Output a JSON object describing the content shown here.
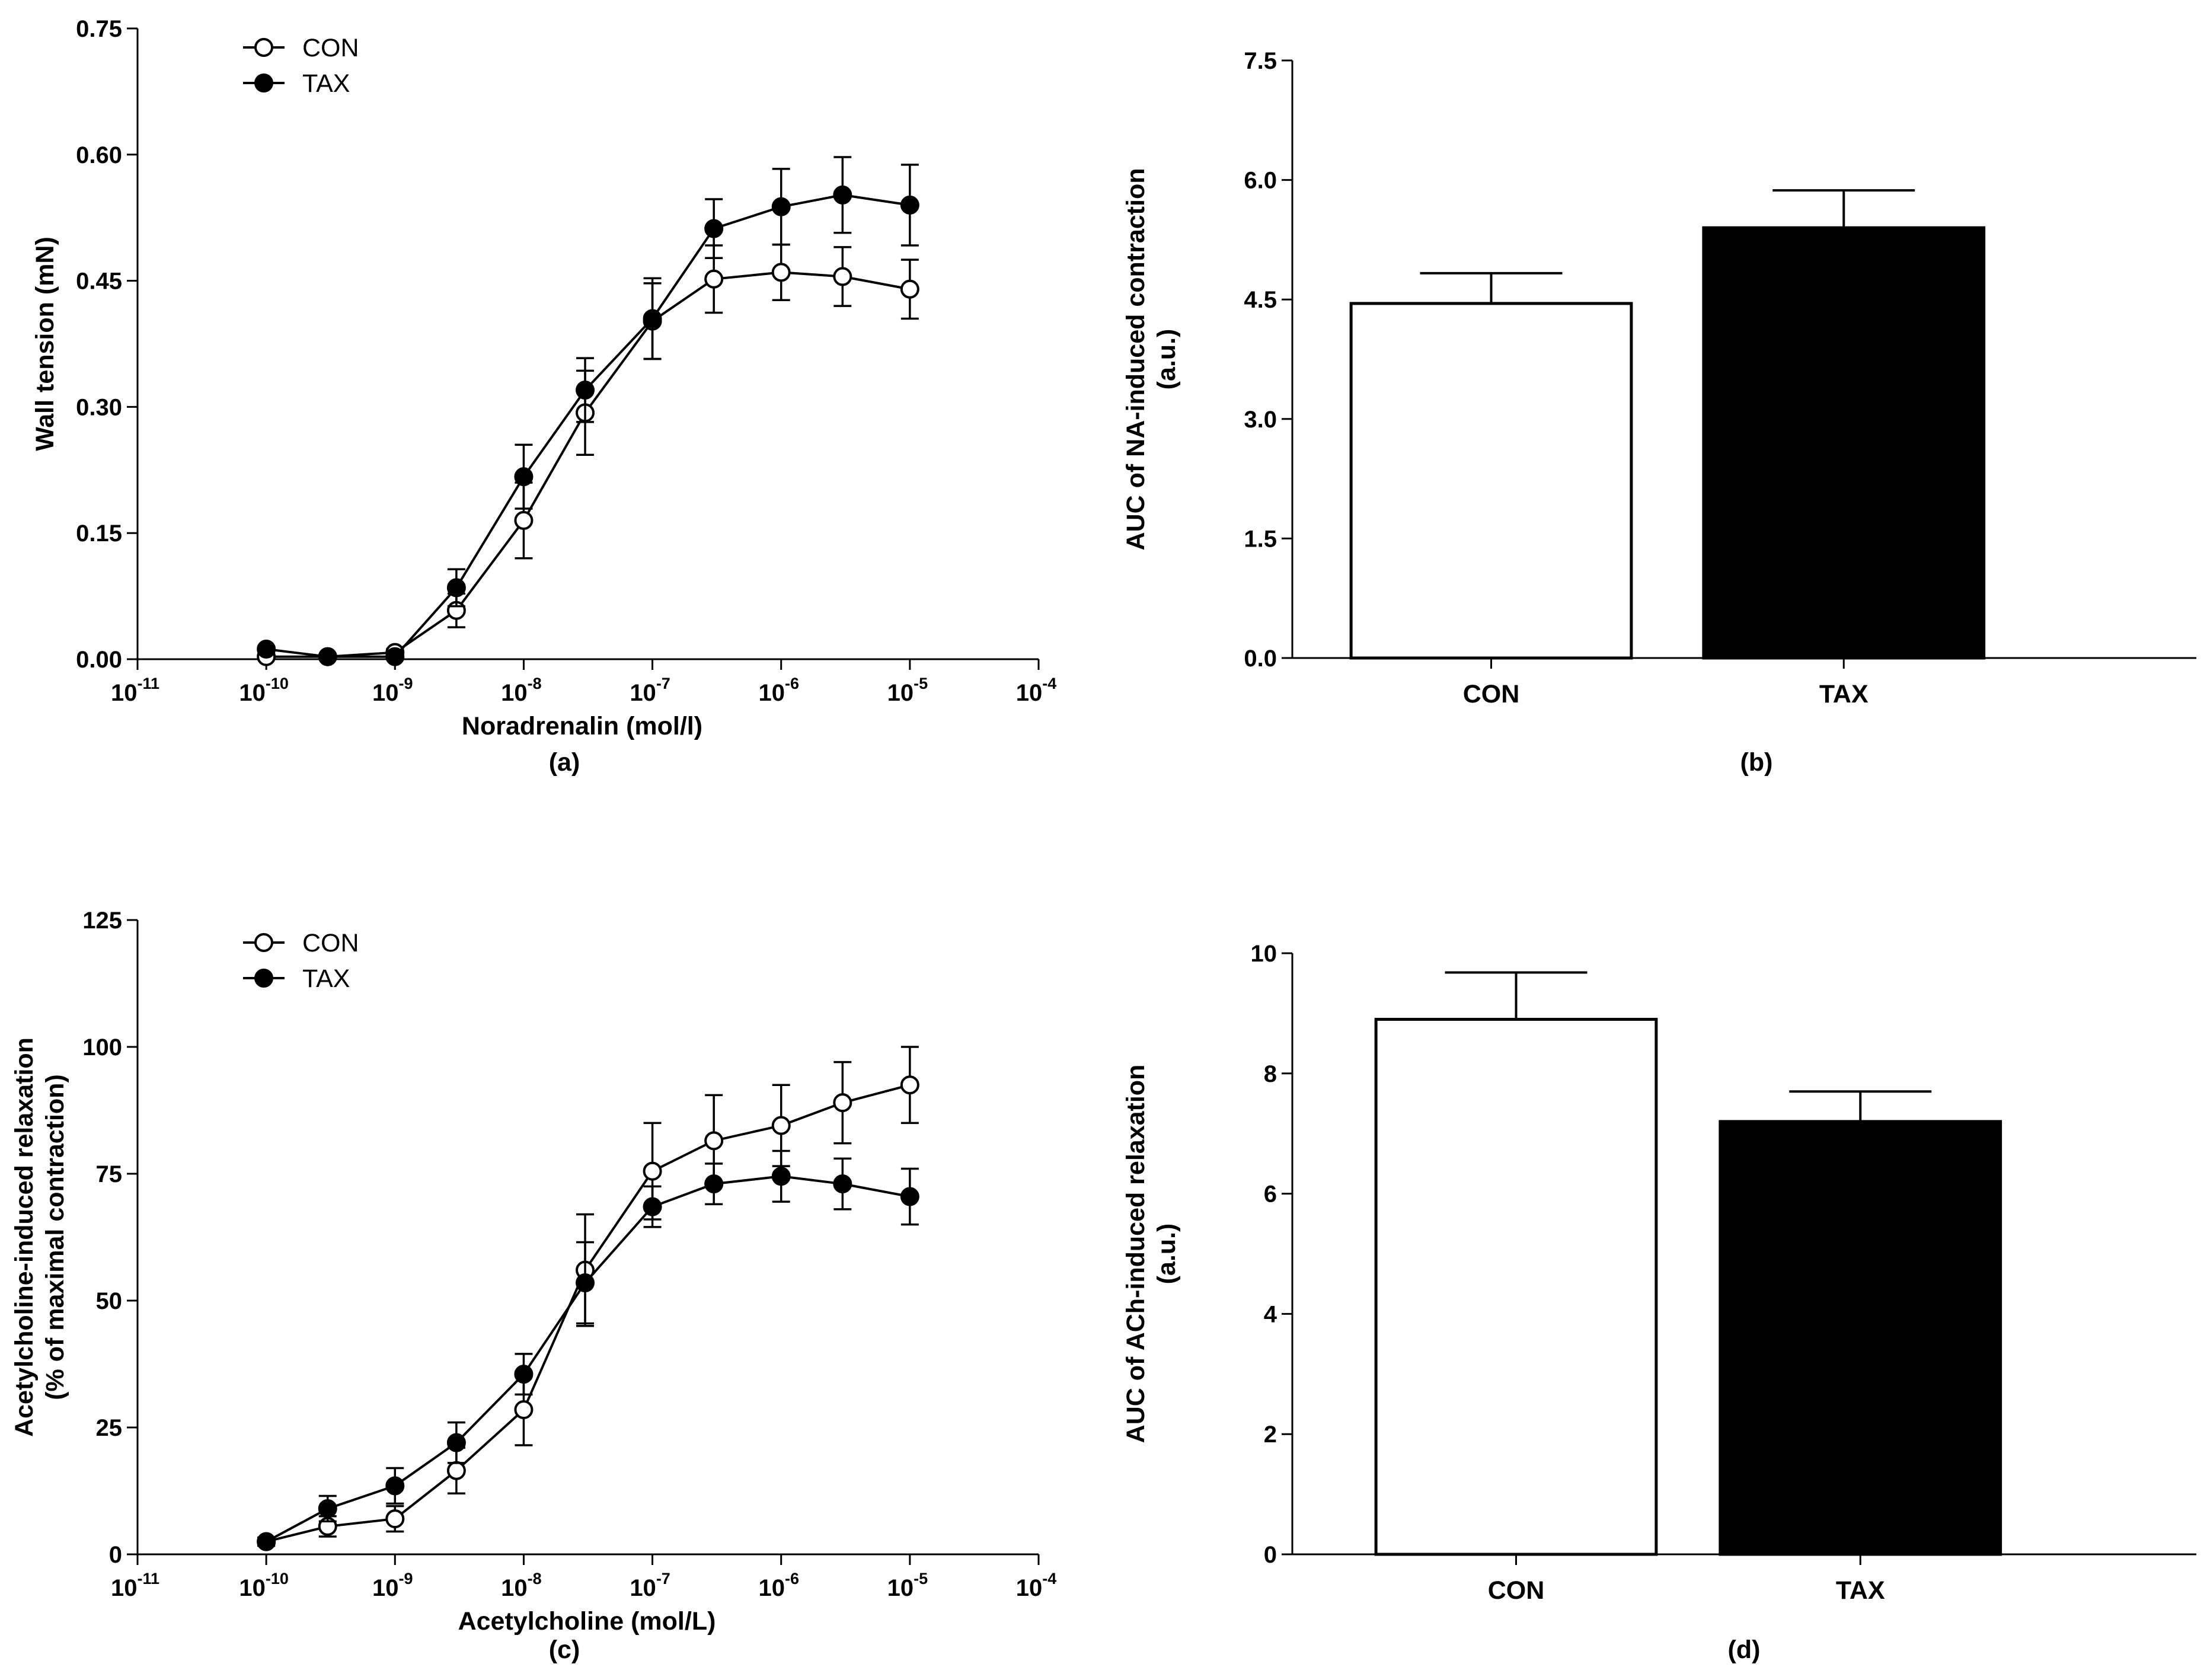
{
  "chart_data": [
    {
      "panel": "(a)",
      "type": "line",
      "xscale": "log",
      "xlim": [
        1e-11,
        0.0001
      ],
      "x_ticks": [
        1e-11,
        1e-10,
        1e-09,
        1e-08,
        1e-07,
        1e-06,
        1e-05,
        0.0001
      ],
      "x_exponents": [
        "-11",
        "-10",
        "-9",
        "-8",
        "-7",
        "-6",
        "-5",
        "-4"
      ],
      "xlabel": "Noradrenalin (mol/l)",
      "ylabel": [
        "Wall tension (mN)"
      ],
      "ylim": [
        0,
        0.75
      ],
      "y_ticks": [
        "0.00",
        "0.15",
        "0.30",
        "0.45",
        "0.60",
        "0.75"
      ],
      "x": [
        1e-10,
        3e-10,
        1e-09,
        3e-09,
        1e-08,
        3e-08,
        1e-07,
        3e-07,
        1e-06,
        3e-06,
        1e-05
      ],
      "legend_position": "top-left",
      "series": [
        {
          "name": "CON",
          "marker": "open-circle",
          "values": [
            0.003,
            0.003,
            0.008,
            0.058,
            0.165,
            0.293,
            0.402,
            0.452,
            0.46,
            0.455,
            0.44
          ],
          "errors": [
            0.003,
            0.003,
            0.004,
            0.02,
            0.045,
            0.05,
            0.045,
            0.04,
            0.033,
            0.035,
            0.035
          ]
        },
        {
          "name": "TAX",
          "marker": "filled-circle",
          "values": [
            0.012,
            0.003,
            0.003,
            0.085,
            0.217,
            0.32,
            0.405,
            0.512,
            0.538,
            0.552,
            0.54
          ],
          "errors": [
            0.003,
            0.002,
            0.003,
            0.022,
            0.038,
            0.038,
            0.048,
            0.035,
            0.045,
            0.045,
            0.048
          ]
        }
      ]
    },
    {
      "panel": "(b)",
      "type": "bar",
      "categories": [
        "CON",
        "TAX"
      ],
      "values": [
        4.45,
        5.4
      ],
      "errors": [
        0.38,
        0.47
      ],
      "colors": [
        "#ffffff",
        "#000000"
      ],
      "xlabel": "",
      "ylabel": [
        "AUC of NA-induced contraction",
        "(a.u.)"
      ],
      "ylim": [
        0,
        7.5
      ],
      "y_ticks": [
        "0.0",
        "1.5",
        "3.0",
        "4.5",
        "6.0",
        "7.5"
      ]
    },
    {
      "panel": "(c)",
      "type": "line",
      "xscale": "log",
      "xlim": [
        1e-11,
        0.0001
      ],
      "x_ticks": [
        1e-11,
        1e-10,
        1e-09,
        1e-08,
        1e-07,
        1e-06,
        1e-05,
        0.0001
      ],
      "x_exponents": [
        "-11",
        "-10",
        "-9",
        "-8",
        "-7",
        "-6",
        "-5",
        "-4"
      ],
      "xlabel": "Acetylcholine (mol/L)",
      "ylabel": [
        "Acetylcholine-induced relaxation",
        "(% of maximal contraction)"
      ],
      "ylim": [
        0,
        125
      ],
      "y_ticks": [
        "0",
        "25",
        "50",
        "75",
        "100",
        "125"
      ],
      "x": [
        1e-10,
        3e-10,
        1e-09,
        3e-09,
        1e-08,
        3e-08,
        1e-07,
        3e-07,
        1e-06,
        3e-06,
        1e-05
      ],
      "legend_position": "top-left",
      "series": [
        {
          "name": "CON",
          "marker": "open-circle",
          "values": [
            2.5,
            5.5,
            7.0,
            16.5,
            28.5,
            56.0,
            75.5,
            81.5,
            84.5,
            89.0,
            92.5
          ],
          "errors": [
            0.8,
            2.0,
            2.5,
            4.5,
            7.0,
            11.0,
            9.5,
            9.0,
            8.0,
            8.0,
            7.5
          ]
        },
        {
          "name": "TAX",
          "marker": "filled-circle",
          "values": [
            2.5,
            9.0,
            13.5,
            22.0,
            35.5,
            53.5,
            68.5,
            73.0,
            74.5,
            73.0,
            70.5
          ],
          "errors": [
            0.8,
            2.5,
            3.5,
            4.0,
            4.0,
            8.0,
            4.0,
            4.0,
            5.0,
            5.0,
            5.5
          ]
        }
      ]
    },
    {
      "panel": "(d)",
      "type": "bar",
      "categories": [
        "CON",
        "TAX"
      ],
      "values": [
        8.9,
        7.2
      ],
      "errors": [
        0.78,
        0.5
      ],
      "colors": [
        "#ffffff",
        "#000000"
      ],
      "xlabel": "",
      "ylabel": [
        "AUC of ACh-induced relaxation",
        "(a.u.)"
      ],
      "ylim": [
        0,
        10
      ],
      "y_ticks": [
        "0",
        "2",
        "4",
        "6",
        "8",
        "10"
      ]
    }
  ]
}
